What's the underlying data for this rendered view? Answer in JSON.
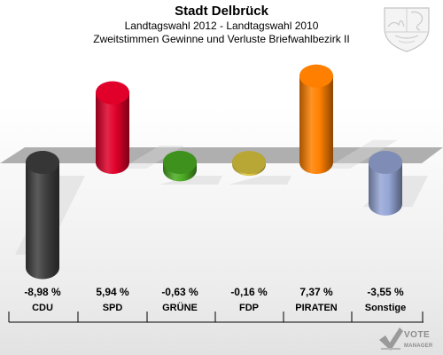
{
  "title": "Stadt Delbrück",
  "subtitle": "Landtagswahl 2012 - Landtagswahl 2010",
  "subtitle2": "Zweitstimmen Gewinne und Verluste Briefwahlbezirk II",
  "logo": {
    "icon": "vote-checkmark-icon",
    "line1": "VOTE",
    "line2": "MANAGER"
  },
  "crest": {
    "icon": "nrw-coat-of-arms-icon"
  },
  "chart_data": {
    "type": "bar",
    "title": "Stadt Delbrück",
    "categories": [
      "CDU",
      "SPD",
      "GRÜNE",
      "FDP",
      "PIRATEN",
      "Sonstige"
    ],
    "values": [
      -8.98,
      5.94,
      -0.63,
      -0.16,
      7.37,
      -3.55
    ],
    "value_labels": [
      "-8,98 %",
      "5,94 %",
      "-0,63 %",
      "-0,16 %",
      "7,37 %",
      "-3,55 %"
    ],
    "colors": [
      "#3f3f3f",
      "#e0002a",
      "#4aaa22",
      "#d9c33e",
      "#ff8000",
      "#95a6d6"
    ],
    "unit": "%",
    "grid": false,
    "legend": "none"
  }
}
